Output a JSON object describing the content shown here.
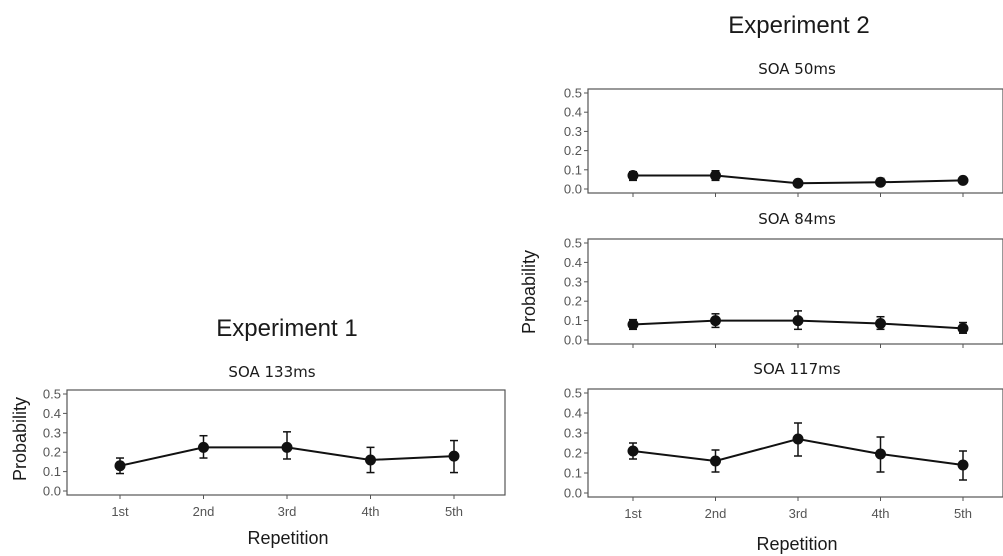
{
  "chart_data": [
    {
      "type": "line",
      "experiment": "Experiment 1",
      "title": "SOA 133ms",
      "xlabel": "Repetition",
      "ylabel": "Probability",
      "categories": [
        "1st",
        "2nd",
        "3rd",
        "4th",
        "5th"
      ],
      "values": [
        0.13,
        0.225,
        0.225,
        0.16,
        0.18
      ],
      "error_low": [
        0.09,
        0.17,
        0.165,
        0.095,
        0.095
      ],
      "error_high": [
        0.17,
        0.285,
        0.305,
        0.225,
        0.26
      ],
      "ylim": [
        0,
        0.5
      ],
      "yticks": [
        "0.0",
        "0.1",
        "0.2",
        "0.3",
        "0.4",
        "0.5"
      ],
      "grid": false
    },
    {
      "type": "line",
      "experiment": "Experiment 2",
      "title": "SOA 50ms",
      "xlabel": "",
      "ylabel": "",
      "categories": [
        "1st",
        "2nd",
        "3rd",
        "4th",
        "5th"
      ],
      "values": [
        0.07,
        0.07,
        0.03,
        0.035,
        0.045
      ],
      "error_low": [
        0.045,
        0.045,
        0.02,
        0.02,
        0.03
      ],
      "error_high": [
        0.09,
        0.095,
        0.04,
        0.055,
        0.06
      ],
      "ylim": [
        0,
        0.5
      ],
      "yticks": [
        "0.0",
        "0.1",
        "0.2",
        "0.3",
        "0.4",
        "0.5"
      ],
      "grid": false
    },
    {
      "type": "line",
      "experiment": "Experiment 2",
      "title": "SOA 84ms",
      "xlabel": "",
      "ylabel": "Probability",
      "categories": [
        "1st",
        "2nd",
        "3rd",
        "4th",
        "5th"
      ],
      "values": [
        0.08,
        0.1,
        0.1,
        0.085,
        0.06
      ],
      "error_low": [
        0.055,
        0.065,
        0.055,
        0.055,
        0.035
      ],
      "error_high": [
        0.105,
        0.135,
        0.15,
        0.12,
        0.09
      ],
      "ylim": [
        0,
        0.5
      ],
      "yticks": [
        "0.0",
        "0.1",
        "0.2",
        "0.3",
        "0.4",
        "0.5"
      ],
      "grid": false
    },
    {
      "type": "line",
      "experiment": "Experiment 2",
      "title": "SOA 117ms",
      "xlabel": "Repetition",
      "ylabel": "",
      "categories": [
        "1st",
        "2nd",
        "3rd",
        "4th",
        "5th"
      ],
      "values": [
        0.21,
        0.16,
        0.27,
        0.195,
        0.14
      ],
      "error_low": [
        0.17,
        0.105,
        0.185,
        0.105,
        0.065
      ],
      "error_high": [
        0.25,
        0.215,
        0.35,
        0.28,
        0.21
      ],
      "ylim": [
        0,
        0.5
      ],
      "yticks": [
        "0.0",
        "0.1",
        "0.2",
        "0.3",
        "0.4",
        "0.5"
      ],
      "grid": false
    }
  ]
}
